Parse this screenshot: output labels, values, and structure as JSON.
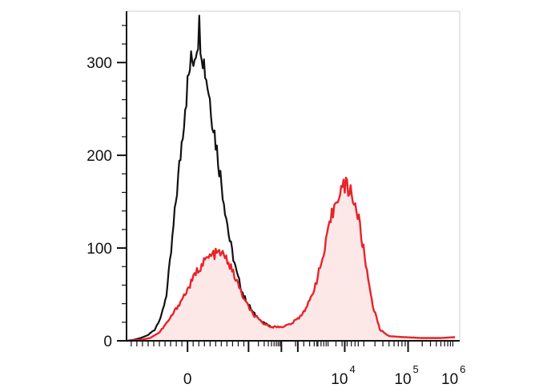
{
  "chart_data": {
    "type": "line",
    "title": "",
    "xlabel": "",
    "ylabel": "",
    "x_scale": "biexponential",
    "y_range": [
      0,
      345
    ],
    "grid": false,
    "legend": "none",
    "y_ticks": [
      {
        "value": 0,
        "label": "0"
      },
      {
        "value": 100,
        "label": "100"
      },
      {
        "value": 200,
        "label": "200"
      },
      {
        "value": 300,
        "label": "300"
      }
    ],
    "x_ticks": [
      {
        "value": "0",
        "base": "0",
        "exp": ""
      },
      {
        "value": "1e4",
        "base": "10",
        "exp": "4"
      },
      {
        "value": "1e5",
        "base": "10",
        "exp": "5"
      },
      {
        "value": "1e6",
        "base": "10",
        "exp": "6"
      }
    ],
    "series": [
      {
        "style": "isotype control",
        "color": "#111111",
        "fill": "none",
        "points": [
          [
            "-1.0",
            0
          ],
          [
            "-0.85",
            1
          ],
          [
            "-0.7",
            3
          ],
          [
            "-0.55",
            6
          ],
          [
            "-0.4",
            12
          ],
          [
            "-0.25",
            28
          ],
          [
            "-0.15",
            50
          ],
          [
            "-0.05",
            95
          ],
          [
            "0.05",
            150
          ],
          [
            "0.15",
            200
          ],
          [
            "0.25",
            255
          ],
          [
            "0.35",
            295
          ],
          [
            "0.45",
            310
          ],
          [
            "0.55",
            338
          ],
          [
            "0.65",
            300
          ],
          [
            "0.75",
            270
          ],
          [
            "0.9",
            215
          ],
          [
            "1.05",
            160
          ],
          [
            "1.2",
            108
          ],
          [
            "1.35",
            72
          ],
          [
            "1.5",
            48
          ],
          [
            "1.7",
            30
          ],
          [
            "1.9",
            20
          ],
          [
            "2.1",
            14
          ],
          [
            "2.4",
            10
          ],
          [
            "2.7",
            7
          ],
          [
            "3.0",
            5
          ],
          [
            "3.3",
            4
          ],
          [
            "3.6",
            3
          ],
          [
            "3.9",
            2
          ],
          [
            "4.2",
            1
          ],
          [
            "4.5",
            0
          ]
        ]
      },
      {
        "style": "stained",
        "color": "#e8232a",
        "fill": "#fde8e8",
        "points": [
          [
            "-1.0",
            0
          ],
          [
            "-0.7",
            1
          ],
          [
            "-0.5",
            3
          ],
          [
            "-0.3",
            9
          ],
          [
            "-0.1",
            22
          ],
          [
            "0.1",
            38
          ],
          [
            "0.3",
            55
          ],
          [
            "0.5",
            75
          ],
          [
            "0.7",
            88
          ],
          [
            "0.85",
            93
          ],
          [
            "1.0",
            95
          ],
          [
            "1.15",
            87
          ],
          [
            "1.3",
            70
          ],
          [
            "1.5",
            45
          ],
          [
            "1.7",
            28
          ],
          [
            "1.9",
            19
          ],
          [
            "2.1",
            15
          ],
          [
            "2.3",
            15
          ],
          [
            "2.5",
            18
          ],
          [
            "2.7",
            26
          ],
          [
            "2.9",
            42
          ],
          [
            "3.05",
            65
          ],
          [
            "3.2",
            92
          ],
          [
            "3.35",
            130
          ],
          [
            "3.5",
            158
          ],
          [
            "3.65",
            168
          ],
          [
            "3.8",
            160
          ],
          [
            "3.95",
            130
          ],
          [
            "4.1",
            82
          ],
          [
            "4.25",
            38
          ],
          [
            "4.4",
            12
          ],
          [
            "4.6",
            5
          ],
          [
            "4.9",
            4
          ],
          [
            "5.3",
            3
          ],
          [
            "5.7",
            3
          ],
          [
            "6.0",
            4
          ]
        ]
      }
    ]
  }
}
